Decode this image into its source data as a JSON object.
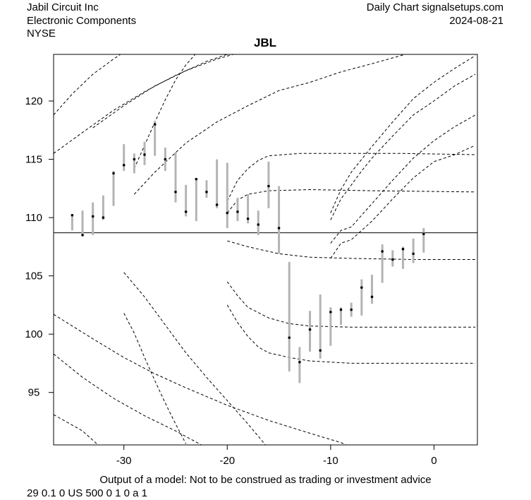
{
  "header": {
    "company": "Jabil Circuit Inc",
    "sector": "Electronic Components",
    "exchange": "NYSE",
    "source": "Daily Chart signalsetups.com",
    "date": "2024-08-21"
  },
  "footer": {
    "disclaimer": "Output of a model: Not to be construed as trading or investment advice",
    "params": "29 0.1 0 US 500 0 1 0 a 1"
  },
  "chart_data": {
    "type": "line",
    "title": "JBL",
    "xlim": [
      -36.8,
      4.2
    ],
    "ylim": [
      90.5,
      124
    ],
    "x_ticks": [
      -30,
      -20,
      -10,
      0
    ],
    "y_ticks": [
      95,
      100,
      105,
      110,
      115,
      120
    ],
    "reference_line": 108.7,
    "bars": [
      {
        "x": -35,
        "low": 108.9,
        "high": 110.3,
        "close": 110.2
      },
      {
        "x": -34,
        "low": 108.4,
        "high": 110.6,
        "close": 108.5
      },
      {
        "x": -33,
        "low": 108.5,
        "high": 111.3,
        "close": 110.1
      },
      {
        "x": -32,
        "low": 109.8,
        "high": 111.9,
        "close": 110.0
      },
      {
        "x": -31,
        "low": 111.0,
        "high": 114.0,
        "close": 113.8
      },
      {
        "x": -30,
        "low": 114.0,
        "high": 116.3,
        "close": 114.5
      },
      {
        "x": -29,
        "low": 113.8,
        "high": 115.5,
        "close": 115.0
      },
      {
        "x": -28,
        "low": 114.5,
        "high": 116.5,
        "close": 115.4
      },
      {
        "x": -27,
        "low": 115.3,
        "high": 118.3,
        "close": 118.0
      },
      {
        "x": -26,
        "low": 114.0,
        "high": 116.0,
        "close": 115.0
      },
      {
        "x": -25,
        "low": 111.3,
        "high": 115.6,
        "close": 112.2
      },
      {
        "x": -24,
        "low": 110.1,
        "high": 112.8,
        "close": 110.5
      },
      {
        "x": -23,
        "low": 109.7,
        "high": 113.4,
        "close": 113.3
      },
      {
        "x": -22,
        "low": 111.7,
        "high": 113.2,
        "close": 112.2
      },
      {
        "x": -21,
        "low": 110.8,
        "high": 115.0,
        "close": 111.1
      },
      {
        "x": -20,
        "low": 109.1,
        "high": 114.7,
        "close": 110.4
      },
      {
        "x": -19,
        "low": 109.7,
        "high": 111.7,
        "close": 110.5
      },
      {
        "x": -18,
        "low": 109.5,
        "high": 112.0,
        "close": 109.9
      },
      {
        "x": -17,
        "low": 108.5,
        "high": 110.6,
        "close": 109.4
      },
      {
        "x": -16,
        "low": 110.8,
        "high": 114.8,
        "close": 112.7
      },
      {
        "x": -15,
        "low": 106.9,
        "high": 112.7,
        "close": 109.1
      },
      {
        "x": -14,
        "low": 96.8,
        "high": 106.2,
        "close": 99.7
      },
      {
        "x": -13,
        "low": 95.8,
        "high": 98.9,
        "close": 97.6
      },
      {
        "x": -12,
        "low": 98.5,
        "high": 102.0,
        "close": 100.4
      },
      {
        "x": -11,
        "low": 97.9,
        "high": 103.4,
        "close": 98.6
      },
      {
        "x": -10,
        "low": 99.0,
        "high": 102.3,
        "close": 101.9
      },
      {
        "x": -9,
        "low": 100.8,
        "high": 102.3,
        "close": 102.1
      },
      {
        "x": -8,
        "low": 101.5,
        "high": 102.7,
        "close": 102.1
      },
      {
        "x": -7,
        "low": 101.6,
        "high": 104.7,
        "close": 104.0
      },
      {
        "x": -6,
        "low": 102.6,
        "high": 105.1,
        "close": 103.2
      },
      {
        "x": -5,
        "low": 104.4,
        "high": 107.7,
        "close": 107.1
      },
      {
        "x": -4,
        "low": 105.8,
        "high": 107.2,
        "close": 106.4
      },
      {
        "x": -3,
        "low": 105.6,
        "high": 107.5,
        "close": 107.3
      },
      {
        "x": -2,
        "low": 106.1,
        "high": 108.2,
        "close": 106.9
      },
      {
        "x": -1,
        "low": 107.0,
        "high": 109.1,
        "close": 108.6
      }
    ],
    "dashed_curves": [
      [
        [
          -36.8,
          118.8
        ],
        [
          -35,
          120.6
        ],
        [
          -33,
          122.3
        ],
        [
          -31,
          123.6
        ],
        [
          -30,
          124.2
        ]
      ],
      [
        [
          -36.8,
          115.5
        ],
        [
          -34,
          117.3
        ],
        [
          -31,
          119.2
        ],
        [
          -28,
          120.8
        ],
        [
          -25,
          122.2
        ],
        [
          -22,
          123.4
        ],
        [
          -20,
          124.0
        ]
      ],
      [
        [
          -33,
          117.7
        ],
        [
          -30,
          119.6
        ],
        [
          -27,
          121.3
        ],
        [
          -24,
          122.6
        ],
        [
          -21,
          123.6
        ],
        [
          -19,
          124.1
        ]
      ],
      [
        [
          -29,
          114.2
        ],
        [
          -28,
          116.2
        ],
        [
          -27,
          118.2
        ],
        [
          -26,
          120.1
        ],
        [
          -25,
          121.8
        ],
        [
          -24,
          123.1
        ],
        [
          -23,
          124.1
        ]
      ],
      [
        [
          -29,
          112.0
        ],
        [
          -27,
          113.9
        ],
        [
          -24,
          116.4
        ],
        [
          -21,
          118.2
        ],
        [
          -18,
          119.6
        ],
        [
          -15,
          120.9
        ],
        [
          -12,
          121.6
        ],
        [
          -9,
          122.5
        ],
        [
          -6,
          123.2
        ],
        [
          -4,
          123.7
        ],
        [
          -2,
          124.2
        ]
      ],
      [
        [
          -20,
          111.4
        ],
        [
          -19,
          113.2
        ],
        [
          -18,
          114.2
        ],
        [
          -17,
          114.9
        ],
        [
          -16,
          115.3
        ],
        [
          -13,
          115.5
        ],
        [
          -8,
          115.5
        ],
        [
          -3,
          115.5
        ],
        [
          4,
          115.4
        ]
      ],
      [
        [
          -20,
          110.4
        ],
        [
          -19,
          111.5
        ],
        [
          -18,
          112.0
        ],
        [
          -16,
          112.3
        ],
        [
          -12,
          112.4
        ],
        [
          -6,
          112.3
        ],
        [
          4,
          112.2
        ]
      ],
      [
        [
          -20,
          108.0
        ],
        [
          -18,
          107.5
        ],
        [
          -15,
          106.9
        ],
        [
          -12,
          106.6
        ],
        [
          -8,
          106.5
        ],
        [
          -2,
          106.4
        ],
        [
          4,
          106.4
        ]
      ],
      [
        [
          -20,
          104.5
        ],
        [
          -19,
          103.3
        ],
        [
          -18,
          102.3
        ],
        [
          -16,
          101.4
        ],
        [
          -14,
          100.9
        ],
        [
          -12,
          100.7
        ],
        [
          -8,
          100.6
        ],
        [
          4,
          100.6
        ]
      ],
      [
        [
          -20,
          102.5
        ],
        [
          -19,
          101.0
        ],
        [
          -18,
          99.8
        ],
        [
          -17,
          98.9
        ],
        [
          -16,
          98.4
        ],
        [
          -14,
          98.0
        ],
        [
          -12,
          97.7
        ],
        [
          -8,
          97.5
        ],
        [
          4,
          97.5
        ]
      ],
      [
        [
          -10,
          106.5
        ],
        [
          -9,
          107.8
        ],
        [
          -8,
          108.1
        ],
        [
          -7,
          108.9
        ],
        [
          -6,
          109.7
        ],
        [
          -4,
          111.6
        ],
        [
          -2,
          113.4
        ],
        [
          0,
          114.8
        ],
        [
          2,
          115.4
        ],
        [
          4,
          116.2
        ]
      ],
      [
        [
          -10,
          107.8
        ],
        [
          -9,
          108.9
        ],
        [
          -8,
          109.2
        ],
        [
          -7,
          110.2
        ],
        [
          -6,
          111.2
        ],
        [
          -4,
          113.2
        ],
        [
          -2,
          115.1
        ],
        [
          0,
          116.6
        ],
        [
          2,
          117.8
        ],
        [
          4,
          118.8
        ]
      ],
      [
        [
          -10,
          109.8
        ],
        [
          -9,
          111.6
        ],
        [
          -8,
          112.8
        ],
        [
          -7,
          114.0
        ],
        [
          -6,
          115.1
        ],
        [
          -4,
          117.0
        ],
        [
          -2,
          118.8
        ],
        [
          0,
          120.0
        ],
        [
          2,
          121.3
        ],
        [
          4,
          122.3
        ]
      ],
      [
        [
          -10,
          110.4
        ],
        [
          -9,
          112.4
        ],
        [
          -8,
          113.9
        ],
        [
          -7,
          115.0
        ],
        [
          -6,
          116.1
        ],
        [
          -4,
          118.2
        ],
        [
          -2,
          120.2
        ],
        [
          0,
          121.6
        ],
        [
          2,
          122.8
        ],
        [
          4,
          123.9
        ]
      ],
      [
        [
          -36.8,
          101.7
        ],
        [
          -33,
          99.6
        ],
        [
          -30,
          98.0
        ],
        [
          -27,
          96.6
        ],
        [
          -24,
          95.4
        ],
        [
          -20,
          93.9
        ],
        [
          -16,
          92.6
        ],
        [
          -12,
          91.5
        ],
        [
          -9,
          90.7
        ],
        [
          -8.5,
          90.5
        ]
      ],
      [
        [
          -36.8,
          98.3
        ],
        [
          -34,
          96.3
        ],
        [
          -31,
          94.5
        ],
        [
          -28,
          93.0
        ],
        [
          -25,
          91.7
        ],
        [
          -22.5,
          90.5
        ]
      ],
      [
        [
          -36.8,
          93.1
        ],
        [
          -34,
          91.7
        ],
        [
          -32.5,
          90.5
        ]
      ],
      [
        [
          -30,
          105.3
        ],
        [
          -28,
          103.2
        ],
        [
          -26,
          100.8
        ],
        [
          -24,
          98.4
        ],
        [
          -22,
          96.3
        ],
        [
          -20,
          94.3
        ],
        [
          -18,
          92.3
        ],
        [
          -16.3,
          90.5
        ]
      ],
      [
        [
          -30,
          101.8
        ],
        [
          -29,
          100.1
        ],
        [
          -28,
          98.0
        ],
        [
          -27,
          96.0
        ],
        [
          -26,
          94.1
        ],
        [
          -25,
          92.3
        ],
        [
          -24,
          90.6
        ]
      ]
    ]
  }
}
